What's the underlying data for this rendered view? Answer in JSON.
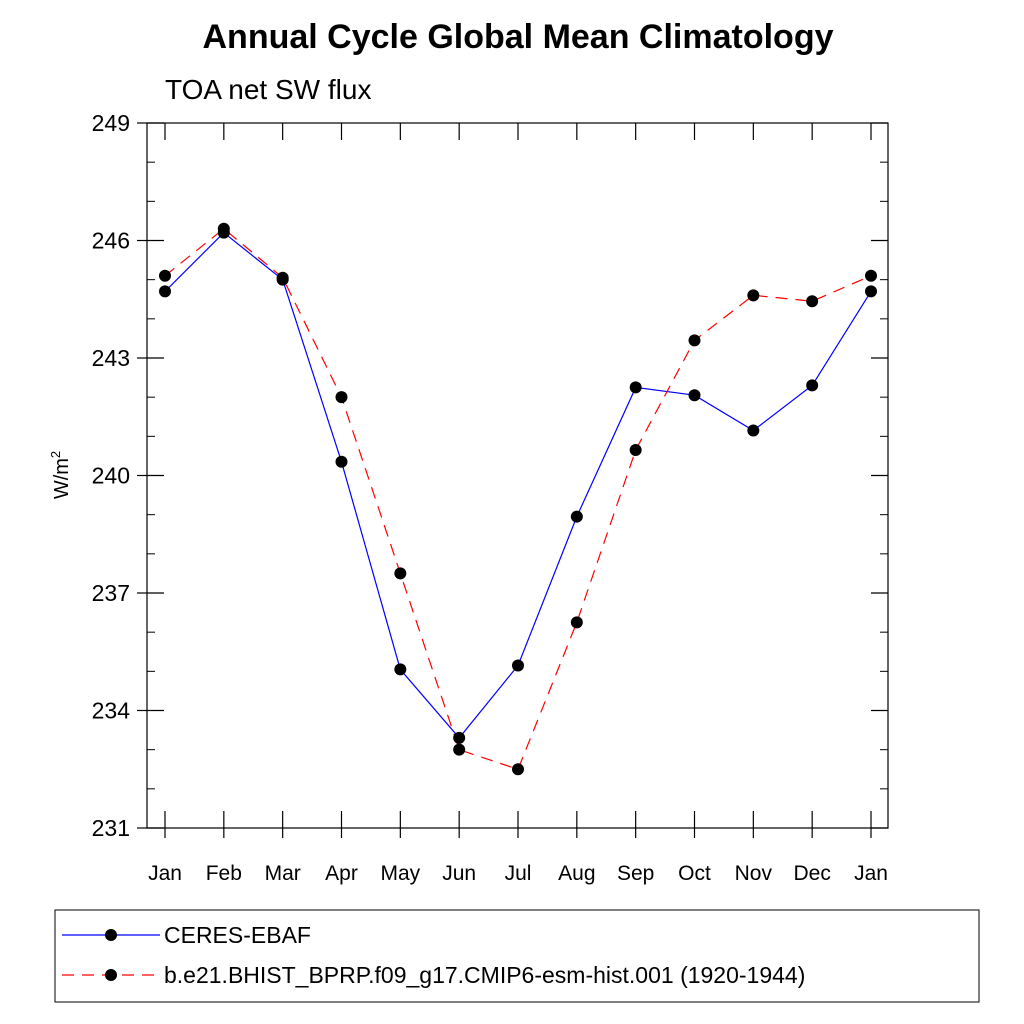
{
  "chart_data": {
    "type": "line",
    "title": "Annual Cycle Global Mean Climatology",
    "subtitle": "TOA net SW flux",
    "ylabel": "W/m",
    "ylabel_sup": "2",
    "ylim": [
      231,
      249
    ],
    "yticks": [
      "231",
      "234",
      "237",
      "240",
      "243",
      "246",
      "249"
    ],
    "categories": [
      "Jan",
      "Feb",
      "Mar",
      "Apr",
      "May",
      "Jun",
      "Jul",
      "Aug",
      "Sep",
      "Oct",
      "Nov",
      "Dec",
      "Jan"
    ],
    "series": [
      {
        "name": "CERES-EBAF",
        "color": "#0000ff",
        "dash": "solid",
        "values": [
          244.7,
          246.2,
          245.0,
          240.35,
          235.05,
          233.3,
          235.15,
          238.95,
          242.25,
          242.05,
          241.15,
          242.3,
          244.7
        ]
      },
      {
        "name": "b.e21.BHIST_BPRP.f09_g17.CMIP6-esm-hist.001 (1920-1944)",
        "color": "#ff0000",
        "dash": "dashed",
        "values": [
          245.1,
          246.3,
          245.05,
          242.0,
          237.5,
          233.0,
          232.5,
          236.25,
          240.65,
          243.45,
          244.6,
          244.45,
          245.1
        ]
      }
    ],
    "grid": false,
    "legend_position": "bottom"
  }
}
